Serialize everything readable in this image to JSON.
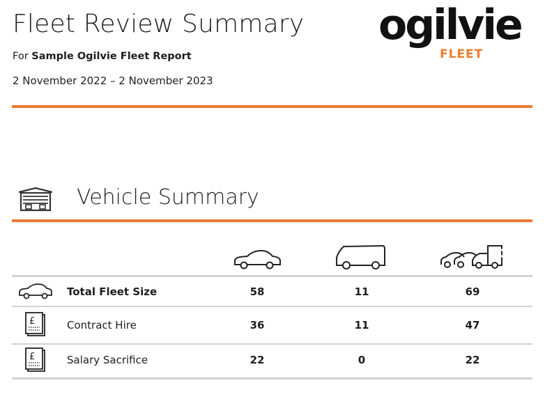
{
  "header": {
    "title": "Fleet Review Summary",
    "for_prefix": "For",
    "report_name": "Sample Ogilvie Fleet Report",
    "date_range": "2 November 2022 – 2 November 2023"
  },
  "logo": {
    "word": "ogilvie",
    "sub": "FLEET",
    "accent_color": "#f07c2a"
  },
  "section": {
    "title": "Vehicle Summary",
    "icon": "garage-icon"
  },
  "columns": [
    {
      "icon": "car-icon"
    },
    {
      "icon": "van-icon"
    },
    {
      "icon": "mixed-fleet-icon"
    }
  ],
  "rows": [
    {
      "icon": "car-icon",
      "label": "Total Fleet Size",
      "bold": true,
      "values": [
        "58",
        "11",
        "69"
      ]
    },
    {
      "icon": "document-pound-icon",
      "label": "Contract Hire",
      "bold": false,
      "values": [
        "36",
        "11",
        "47"
      ]
    },
    {
      "icon": "document-pound-icon",
      "label": "Salary Sacrifice",
      "bold": false,
      "values": [
        "22",
        "0",
        "22"
      ]
    }
  ],
  "colors": {
    "accent": "#ea7a35",
    "divider": "#d3d3d3",
    "text": "#1e1e1e"
  }
}
